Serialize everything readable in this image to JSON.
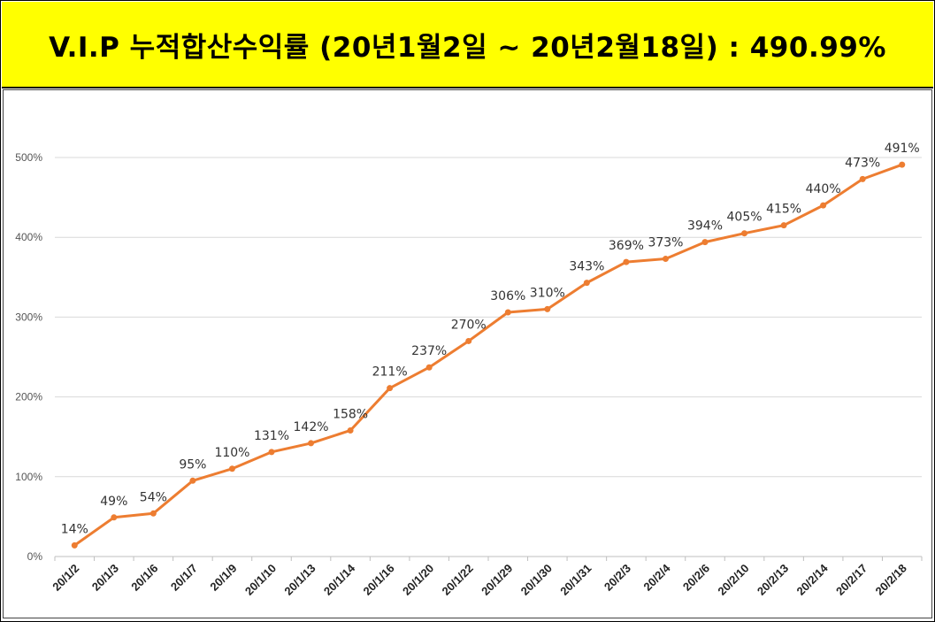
{
  "title": "V.I.P 누적합산수익률 (20년1월2일 ~ 20년2월18일) : 490.99%",
  "colors": {
    "title_bg": "#ffff00",
    "line": "#ed7d31",
    "grid": "#d9d9d9"
  },
  "chart_data": {
    "type": "line",
    "title": "V.I.P 누적합산수익률 (20년1월2일 ~ 20년2월18일) : 490.99%",
    "xlabel": "",
    "ylabel": "",
    "ylim": [
      0,
      500
    ],
    "yticks": [
      0,
      100,
      200,
      300,
      400,
      500
    ],
    "ytick_labels": [
      "0%",
      "100%",
      "200%",
      "300%",
      "400%",
      "500%"
    ],
    "grid": true,
    "categories": [
      "20/1/2",
      "20/1/3",
      "20/1/6",
      "20/1/7",
      "20/1/9",
      "20/1/10",
      "20/1/13",
      "20/1/14",
      "20/1/16",
      "20/1/20",
      "20/1/22",
      "20/1/29",
      "20/1/30",
      "20/1/31",
      "20/2/3",
      "20/2/4",
      "20/2/6",
      "20/2/10",
      "20/2/13",
      "20/2/14",
      "20/2/17",
      "20/2/18"
    ],
    "series": [
      {
        "name": "누적합산수익률",
        "values": [
          14,
          49,
          54,
          95,
          110,
          131,
          142,
          158,
          211,
          237,
          270,
          306,
          310,
          343,
          369,
          373,
          394,
          405,
          415,
          440,
          473,
          491
        ],
        "labels": [
          "14%",
          "49%",
          "54%",
          "95%",
          "110%",
          "131%",
          "142%",
          "158%",
          "211%",
          "237%",
          "270%",
          "306%",
          "310%",
          "343%",
          "369%",
          "373%",
          "394%",
          "405%",
          "415%",
          "440%",
          "473%",
          "491%"
        ]
      }
    ]
  }
}
